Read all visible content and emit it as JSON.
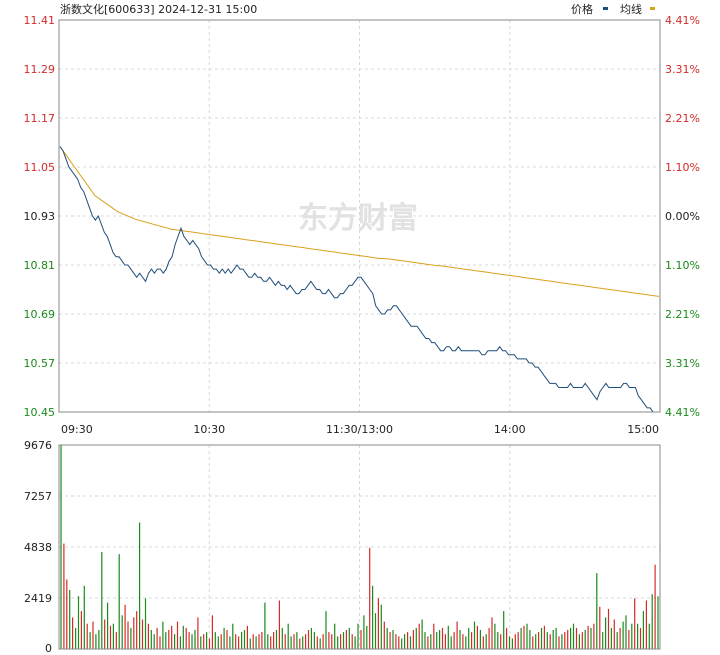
{
  "header": {
    "title": "浙数文化[600633] 2024-12-31 15:00",
    "legend_price": "价格",
    "legend_avg": "均线"
  },
  "watermark": "东方财富",
  "colors": {
    "price_line": "#1f4e7a",
    "avg_line": "#d9a21c",
    "up": "#d42a2a",
    "down": "#1a8a1a",
    "grid": "#d8d8d8",
    "axis": "#888888"
  },
  "chart_data": [
    {
      "type": "line",
      "title": "",
      "x_ticks": [
        "09:30",
        "10:30",
        "11:30/13:00",
        "14:00",
        "15:00"
      ],
      "y_ticks_left": [
        "11.41",
        "11.29",
        "11.17",
        "11.05",
        "10.93",
        "10.81",
        "10.69",
        "10.57",
        "10.45"
      ],
      "y_ticks_right": [
        "4.41%",
        "3.31%",
        "2.21%",
        "1.10%",
        "0.00%",
        "1.10%",
        "2.21%",
        "3.31%",
        "4.41%"
      ],
      "ylim": [
        10.45,
        11.41
      ],
      "series": [
        {
          "name": "价格",
          "values": [
            11.1,
            11.09,
            11.07,
            11.05,
            11.04,
            11.03,
            11.02,
            11.0,
            10.99,
            10.97,
            10.95,
            10.93,
            10.92,
            10.93,
            10.91,
            10.89,
            10.88,
            10.86,
            10.84,
            10.83,
            10.83,
            10.82,
            10.81,
            10.81,
            10.8,
            10.79,
            10.78,
            10.79,
            10.78,
            10.77,
            10.79,
            10.8,
            10.79,
            10.8,
            10.8,
            10.79,
            10.8,
            10.82,
            10.83,
            10.86,
            10.88,
            10.9,
            10.88,
            10.87,
            10.86,
            10.87,
            10.86,
            10.85,
            10.83,
            10.82,
            10.81,
            10.81,
            10.8,
            10.8,
            10.79,
            10.8,
            10.79,
            10.8,
            10.79,
            10.8,
            10.81,
            10.8,
            10.8,
            10.79,
            10.78,
            10.78,
            10.79,
            10.78,
            10.78,
            10.77,
            10.77,
            10.78,
            10.77,
            10.76,
            10.77,
            10.76,
            10.76,
            10.75,
            10.76,
            10.75,
            10.74,
            10.74,
            10.75,
            10.75,
            10.76,
            10.77,
            10.76,
            10.75,
            10.75,
            10.74,
            10.74,
            10.75,
            10.74,
            10.73,
            10.73,
            10.74,
            10.74,
            10.75,
            10.76,
            10.76,
            10.77,
            10.78,
            10.78,
            10.77,
            10.76,
            10.75,
            10.74,
            10.71,
            10.7,
            10.69,
            10.69,
            10.7,
            10.7,
            10.71,
            10.71,
            10.7,
            10.69,
            10.68,
            10.67,
            10.66,
            10.66,
            10.66,
            10.65,
            10.64,
            10.63,
            10.63,
            10.62,
            10.62,
            10.61,
            10.6,
            10.6,
            10.61,
            10.61,
            10.6,
            10.6,
            10.61,
            10.6,
            10.6,
            10.6,
            10.6,
            10.6,
            10.6,
            10.6,
            10.59,
            10.59,
            10.6,
            10.6,
            10.6,
            10.6,
            10.61,
            10.6,
            10.6,
            10.59,
            10.59,
            10.59,
            10.58,
            10.58,
            10.58,
            10.58,
            10.57,
            10.57,
            10.56,
            10.56,
            10.55,
            10.54,
            10.53,
            10.52,
            10.52,
            10.52,
            10.51,
            10.51,
            10.51,
            10.51,
            10.52,
            10.51,
            10.51,
            10.51,
            10.51,
            10.52,
            10.51,
            10.5,
            10.49,
            10.48,
            10.5,
            10.51,
            10.52,
            10.51,
            10.51,
            10.51,
            10.51,
            10.51,
            10.52,
            10.52,
            10.51,
            10.51,
            10.51,
            10.49,
            10.48,
            10.47,
            10.46,
            10.46,
            10.45,
            10.45,
            10.45
          ]
        },
        {
          "name": "均线",
          "values": [
            11.1,
            11.09,
            11.08,
            11.07,
            11.06,
            11.05,
            11.04,
            11.03,
            11.02,
            11.01,
            11.0,
            10.99,
            10.98,
            10.975,
            10.97,
            10.965,
            10.96,
            10.955,
            10.95,
            10.945,
            10.94,
            10.937,
            10.934,
            10.931,
            10.928,
            10.925,
            10.922,
            10.92,
            10.918,
            10.916,
            10.914,
            10.912,
            10.91,
            10.908,
            10.906,
            10.904,
            10.902,
            10.9,
            10.898,
            10.897,
            10.896,
            10.895,
            10.894,
            10.893,
            10.892,
            10.891,
            10.89,
            10.889,
            10.888,
            10.887,
            10.886,
            10.885,
            10.884,
            10.883,
            10.882,
            10.881,
            10.88,
            10.879,
            10.878,
            10.877,
            10.876,
            10.875,
            10.874,
            10.873,
            10.872,
            10.871,
            10.87,
            10.869,
            10.868,
            10.867,
            10.866,
            10.865,
            10.864,
            10.863,
            10.862,
            10.861,
            10.86,
            10.859,
            10.858,
            10.857,
            10.856,
            10.855,
            10.854,
            10.853,
            10.852,
            10.851,
            10.85,
            10.849,
            10.848,
            10.847,
            10.846,
            10.845,
            10.844,
            10.843,
            10.842,
            10.841,
            10.84,
            10.839,
            10.838,
            10.837,
            10.836,
            10.835,
            10.834,
            10.833,
            10.832,
            10.831,
            10.83,
            10.829,
            10.828,
            10.827,
            10.826,
            10.826,
            10.825,
            10.825,
            10.824,
            10.823,
            10.822,
            10.821,
            10.82,
            10.819,
            10.818,
            10.817,
            10.816,
            10.815,
            10.814,
            10.813,
            10.812,
            10.811,
            10.81,
            10.809,
            10.808,
            10.808,
            10.807,
            10.806,
            10.805,
            10.804,
            10.803,
            10.802,
            10.801,
            10.8,
            10.799,
            10.798,
            10.797,
            10.796,
            10.795,
            10.794,
            10.793,
            10.792,
            10.791,
            10.79,
            10.789,
            10.788,
            10.787,
            10.786,
            10.785,
            10.784,
            10.783,
            10.782,
            10.781,
            10.78,
            10.779,
            10.778,
            10.777,
            10.776,
            10.775,
            10.774,
            10.773,
            10.772,
            10.771,
            10.77,
            10.769,
            10.768,
            10.767,
            10.766,
            10.765,
            10.764,
            10.763,
            10.762,
            10.761,
            10.76,
            10.759,
            10.758,
            10.757,
            10.756,
            10.755,
            10.754,
            10.753,
            10.752,
            10.751,
            10.75,
            10.749,
            10.748,
            10.747,
            10.746,
            10.745,
            10.744,
            10.743,
            10.742,
            10.741,
            10.74,
            10.739,
            10.738,
            10.737,
            10.736,
            10.735,
            10.734,
            10.733
          ]
        }
      ]
    },
    {
      "type": "bar",
      "title": "",
      "y_ticks": [
        "9676",
        "7257",
        "4838",
        "2419",
        "0"
      ],
      "ylim": [
        0,
        9676
      ],
      "series": [
        {
          "name": "",
          "values": [
            9676,
            5000,
            3300,
            2800,
            1500,
            1000,
            2500,
            1800,
            3000,
            1200,
            800,
            1300,
            700,
            900,
            4600,
            1400,
            2200,
            1100,
            1200,
            800,
            4500,
            1600,
            2100,
            1300,
            1000,
            1500,
            1800,
            6000,
            1400,
            2400,
            1200,
            900,
            700,
            1000,
            600,
            1300,
            800,
            900,
            1100,
            700,
            1300,
            600,
            1100,
            1000,
            800,
            700,
            900,
            1500,
            600,
            700,
            800,
            500,
            1600,
            800,
            600,
            700,
            1000,
            900,
            600,
            1200,
            700,
            600,
            800,
            900,
            1100,
            500,
            700,
            600,
            700,
            800,
            2200,
            700,
            600,
            800,
            900,
            2300,
            1000,
            700,
            1200,
            600,
            700,
            800,
            500,
            600,
            700,
            900,
            1000,
            800,
            600,
            500,
            700,
            1800,
            800,
            700,
            1200,
            600,
            700,
            800,
            900,
            1000,
            700,
            600,
            1200,
            900,
            1600,
            1100,
            4800,
            3000,
            1700,
            2400,
            2100,
            1300,
            1000,
            800,
            900,
            700,
            600,
            500,
            700,
            800,
            600,
            900,
            1000,
            1200,
            1400,
            800,
            600,
            700,
            1200,
            800,
            900,
            1000,
            700,
            1100,
            600,
            800,
            1300,
            900,
            700,
            600,
            1000,
            800,
            1300,
            1100,
            900,
            600,
            700,
            1000,
            1500,
            1200,
            800,
            700,
            1800,
            1000,
            600,
            500,
            700,
            800,
            1000,
            1100,
            1200,
            900,
            600,
            700,
            800,
            1000,
            1100,
            800,
            700,
            900,
            1000,
            600,
            700,
            800,
            900,
            1000,
            1200,
            1000,
            700,
            800,
            900,
            1100,
            1000,
            1200,
            3600,
            2000,
            800,
            1500,
            1900,
            1000,
            1400,
            800,
            1000,
            1300,
            1600,
            900,
            1200,
            2400,
            1200,
            1000,
            1800,
            2300,
            1200,
            2600,
            4000,
            2500
          ],
          "directions": [
            -1,
            1,
            1,
            -1,
            1,
            -1,
            -1,
            1,
            -1,
            1,
            -1,
            1,
            -1,
            -1,
            -1,
            1,
            -1,
            1,
            -1,
            1,
            -1,
            -1,
            1,
            1,
            -1,
            1,
            1,
            -1,
            1,
            -1,
            1,
            -1,
            -1,
            1,
            1,
            -1,
            -1,
            1,
            1,
            -1,
            1,
            -1,
            -1,
            1,
            1,
            -1,
            -1,
            1,
            -1,
            1,
            -1,
            1,
            1,
            -1,
            -1,
            1,
            -1,
            1,
            -1,
            -1,
            1,
            1,
            -1,
            -1,
            1,
            -1,
            1,
            -1,
            1,
            1,
            -1,
            -1,
            1,
            1,
            -1,
            1,
            -1,
            1,
            -1,
            -1,
            1,
            -1,
            1,
            -1,
            1,
            1,
            -1,
            -1,
            1,
            -1,
            1,
            -1,
            1,
            1,
            -1,
            -1,
            1,
            -1,
            1,
            -1,
            1,
            -1,
            -1,
            1,
            -1,
            -1,
            1,
            -1,
            -1,
            1,
            -1,
            1,
            -1,
            1,
            -1,
            1,
            1,
            -1,
            -1,
            1,
            -1,
            1,
            -1,
            1,
            -1,
            -1,
            1,
            -1,
            1,
            -1,
            -1,
            1,
            1,
            -1,
            -1,
            1,
            1,
            -1,
            1,
            -1,
            -1,
            1,
            -1,
            1,
            -1,
            1,
            -1,
            1,
            1,
            -1,
            -1,
            1,
            -1,
            1,
            -1,
            -1,
            1,
            1,
            -1,
            1,
            -1,
            -1,
            1,
            -1,
            1,
            -1,
            1,
            -1,
            1,
            -1,
            -1,
            1,
            -1,
            1,
            1,
            -1,
            -1,
            1,
            -1,
            1,
            -1,
            1,
            -1,
            1,
            -1,
            1,
            -1,
            -1,
            1,
            -1,
            1,
            -1,
            1,
            -1,
            -1,
            1,
            -1,
            1,
            -1,
            1,
            -1,
            1,
            -1,
            -1,
            1,
            -1,
            -1
          ]
        }
      ]
    }
  ]
}
